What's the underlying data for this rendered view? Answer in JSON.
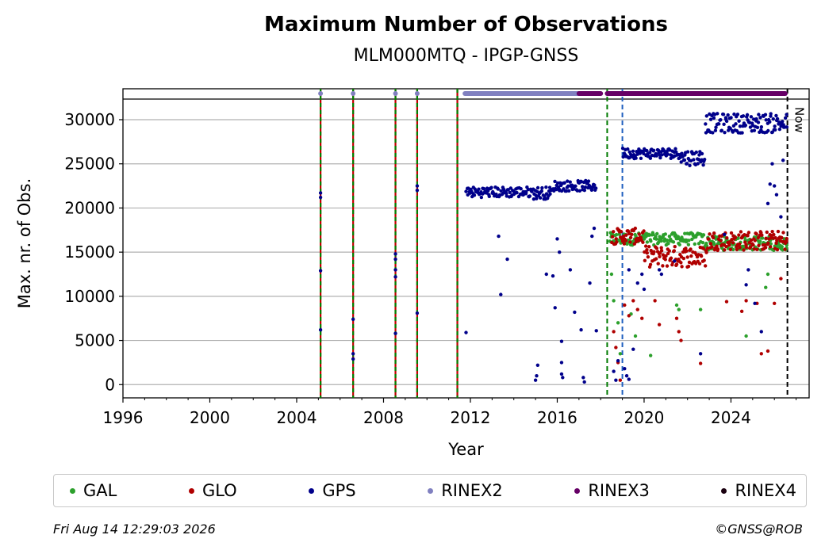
{
  "chart_data": {
    "type": "scatter",
    "title": "Maximum Number of Observations",
    "subtitle": "MLM000MTQ - IPGP-GNSS",
    "xlabel": "Year",
    "ylabel": "Max. nr. of Obs.",
    "xlim": [
      1996,
      2027.6
    ],
    "ylim": [
      -1500,
      33500
    ],
    "xticks": [
      1996,
      2000,
      2004,
      2008,
      2012,
      2016,
      2020,
      2024
    ],
    "xtick_labels": [
      "1996",
      "2000",
      "2004",
      "2008",
      "2012",
      "2016",
      "2020",
      "2024"
    ],
    "yticks": [
      0,
      5000,
      10000,
      15000,
      20000,
      25000,
      30000
    ],
    "ytick_labels": [
      "0",
      "5000",
      "10000",
      "15000",
      "20000",
      "25000",
      "30000"
    ],
    "grid": "horizontal",
    "legend_placement": "bottom",
    "now_label": "Now",
    "now_x": 2026.6,
    "vertical_markers": [
      {
        "x": 2005.1,
        "style": "red-green-dashed"
      },
      {
        "x": 2006.6,
        "style": "red-green-dashed"
      },
      {
        "x": 2008.55,
        "style": "red-green-dashed"
      },
      {
        "x": 2009.55,
        "style": "red-green-dashed"
      },
      {
        "x": 2011.4,
        "style": "red-green-dashed"
      },
      {
        "x": 2018.3,
        "style": "green-dashed"
      },
      {
        "x": 2019.0,
        "style": "blue-dashed"
      }
    ],
    "rinex_bars": [
      {
        "name": "RINEX2",
        "from": 2011.75,
        "to": 2017.0
      },
      {
        "name": "RINEX3",
        "from": 2017.0,
        "to": 2018.0
      },
      {
        "name": "RINEX3",
        "from": 2018.3,
        "to": 2026.5
      }
    ],
    "rinex_dots": [
      {
        "name": "RINEX2",
        "x": 2005.1
      },
      {
        "name": "RINEX2",
        "x": 2006.6
      },
      {
        "name": "RINEX2",
        "x": 2008.55
      },
      {
        "name": "RINEX2",
        "x": 2009.55
      }
    ],
    "series": [
      {
        "name": "GAL",
        "color": "#2ca02c",
        "segments": [
          {
            "x0": 2018.4,
            "x1": 2022.75,
            "y": 16500,
            "spread": 700
          },
          {
            "x0": 2022.75,
            "x1": 2026.6,
            "y": 16000,
            "spread": 800
          }
        ],
        "points": [
          [
            2018.5,
            12500
          ],
          [
            2018.6,
            9500
          ],
          [
            2018.8,
            7000
          ],
          [
            2018.9,
            3500
          ],
          [
            2019.4,
            8000
          ],
          [
            2019.6,
            5500
          ],
          [
            2020.3,
            3300
          ],
          [
            2021.5,
            9000
          ],
          [
            2021.6,
            8500
          ],
          [
            2022.6,
            8500
          ],
          [
            2024.7,
            5500
          ],
          [
            2025.6,
            11000
          ],
          [
            2025.7,
            12500
          ],
          [
            2026.2,
            15500
          ]
        ]
      },
      {
        "name": "GLO",
        "color": "#b00000",
        "segments": [
          {
            "x0": 2018.5,
            "x1": 2020.0,
            "y": 16800,
            "spread": 900
          },
          {
            "x0": 2020.0,
            "x1": 2022.9,
            "y": 14500,
            "spread": 1200
          },
          {
            "x0": 2022.9,
            "x1": 2026.6,
            "y": 16300,
            "spread": 1100
          }
        ],
        "points": [
          [
            2018.6,
            6000
          ],
          [
            2018.7,
            4200
          ],
          [
            2018.8,
            2500
          ],
          [
            2018.9,
            500
          ],
          [
            2019.1,
            9000
          ],
          [
            2019.3,
            7800
          ],
          [
            2019.5,
            9500
          ],
          [
            2019.7,
            8500
          ],
          [
            2019.9,
            7500
          ],
          [
            2020.5,
            9500
          ],
          [
            2020.7,
            6800
          ],
          [
            2021.5,
            7500
          ],
          [
            2021.6,
            6000
          ],
          [
            2021.7,
            5000
          ],
          [
            2022.6,
            2400
          ],
          [
            2023.8,
            9400
          ],
          [
            2024.5,
            8300
          ],
          [
            2024.7,
            9500
          ],
          [
            2025.2,
            9200
          ],
          [
            2025.4,
            3500
          ],
          [
            2025.7,
            3800
          ],
          [
            2026.0,
            9200
          ],
          [
            2026.3,
            12000
          ]
        ]
      },
      {
        "name": "GPS",
        "color": "#00008b",
        "segments": [
          {
            "x0": 2011.8,
            "x1": 2014.8,
            "y": 21800,
            "spread": 600
          },
          {
            "x0": 2014.8,
            "x1": 2015.8,
            "y": 21700,
            "spread": 700
          },
          {
            "x0": 2015.8,
            "x1": 2017.8,
            "y": 22500,
            "spread": 600
          },
          {
            "x0": 2019.0,
            "x1": 2021.7,
            "y": 26200,
            "spread": 600
          },
          {
            "x0": 2021.7,
            "x1": 2022.8,
            "y": 25700,
            "spread": 900
          },
          {
            "x0": 2022.8,
            "x1": 2026.6,
            "y": 29600,
            "spread": 1100
          }
        ],
        "points": [
          [
            2005.1,
            21700
          ],
          [
            2005.1,
            21200
          ],
          [
            2005.1,
            12900
          ],
          [
            2005.1,
            6200
          ],
          [
            2006.6,
            7400
          ],
          [
            2006.6,
            3500
          ],
          [
            2006.6,
            2900
          ],
          [
            2008.55,
            14800
          ],
          [
            2008.55,
            14200
          ],
          [
            2008.55,
            13000
          ],
          [
            2008.55,
            12200
          ],
          [
            2008.55,
            5800
          ],
          [
            2009.55,
            22500
          ],
          [
            2009.55,
            22000
          ],
          [
            2009.55,
            8100
          ],
          [
            2011.8,
            5900
          ],
          [
            2013.3,
            16800
          ],
          [
            2013.4,
            10200
          ],
          [
            2013.7,
            14200
          ],
          [
            2015.0,
            500
          ],
          [
            2015.05,
            1000
          ],
          [
            2015.1,
            2200
          ],
          [
            2015.5,
            12500
          ],
          [
            2015.8,
            12300
          ],
          [
            2015.9,
            8700
          ],
          [
            2016.0,
            16500
          ],
          [
            2016.1,
            15000
          ],
          [
            2016.2,
            4900
          ],
          [
            2016.2,
            2500
          ],
          [
            2016.2,
            1200
          ],
          [
            2016.25,
            800
          ],
          [
            2016.6,
            13000
          ],
          [
            2016.8,
            8200
          ],
          [
            2017.1,
            6200
          ],
          [
            2017.2,
            800
          ],
          [
            2017.25,
            300
          ],
          [
            2017.5,
            11500
          ],
          [
            2017.6,
            16800
          ],
          [
            2017.7,
            17700
          ],
          [
            2017.8,
            6100
          ],
          [
            2018.6,
            1500
          ],
          [
            2018.7,
            500
          ],
          [
            2018.8,
            2700
          ],
          [
            2019.1,
            1800
          ],
          [
            2019.2,
            1000
          ],
          [
            2019.3,
            600
          ],
          [
            2019.3,
            13000
          ],
          [
            2019.5,
            4000
          ],
          [
            2019.7,
            11500
          ],
          [
            2019.9,
            12500
          ],
          [
            2020.0,
            10800
          ],
          [
            2020.7,
            13000
          ],
          [
            2020.8,
            12500
          ],
          [
            2021.4,
            14000
          ],
          [
            2022.6,
            3500
          ],
          [
            2023.7,
            17000
          ],
          [
            2024.7,
            11300
          ],
          [
            2024.8,
            13000
          ],
          [
            2025.1,
            9200
          ],
          [
            2025.4,
            6000
          ],
          [
            2025.7,
            20500
          ],
          [
            2025.8,
            22700
          ],
          [
            2025.9,
            25000
          ],
          [
            2026.0,
            22500
          ],
          [
            2026.1,
            21500
          ],
          [
            2026.3,
            19000
          ],
          [
            2026.4,
            25400
          ]
        ]
      }
    ]
  },
  "legend": [
    {
      "label": "GAL",
      "color": "#2ca02c"
    },
    {
      "label": "GLO",
      "color": "#b00000"
    },
    {
      "label": "GPS",
      "color": "#00008b"
    },
    {
      "label": "RINEX2",
      "color": "#8080c0"
    },
    {
      "label": "RINEX3",
      "color": "#660066"
    },
    {
      "label": "RINEX4",
      "color": "#1a0010"
    }
  ],
  "footer": {
    "timestamp": "Fri Aug 14 12:29:03 2026",
    "copyright": "©GNSS@ROB"
  }
}
